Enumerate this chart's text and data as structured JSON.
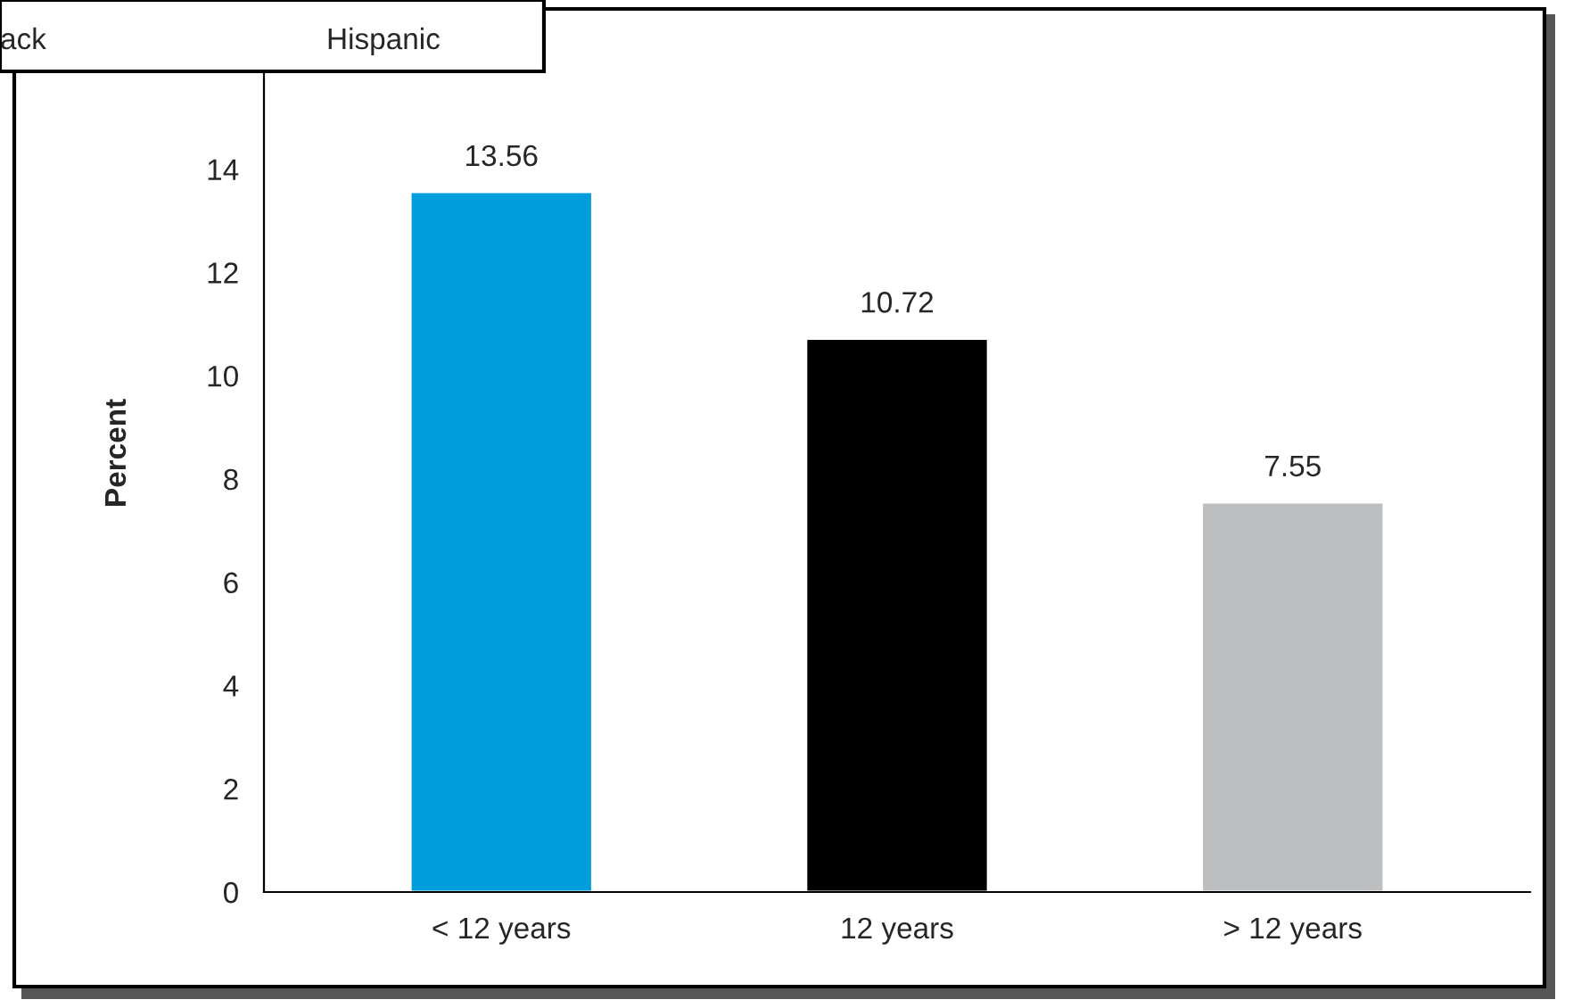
{
  "chart_data": [
    {
      "type": "bar",
      "ylabel": "Percent",
      "categories": [
        "< 12 years",
        "12 years",
        "> 12 years"
      ],
      "values": [
        13.56,
        10.72,
        7.55
      ],
      "colors": [
        "#009ddc",
        "#000000",
        "#bcbec0"
      ],
      "ylim": [
        0,
        17
      ],
      "yticks": [
        0,
        2,
        4,
        6,
        8,
        10,
        12,
        14
      ],
      "data_labels": true,
      "grid": false
    },
    {
      "type": "other",
      "annotations": [
        "ack",
        "Hispanic"
      ]
    }
  ]
}
